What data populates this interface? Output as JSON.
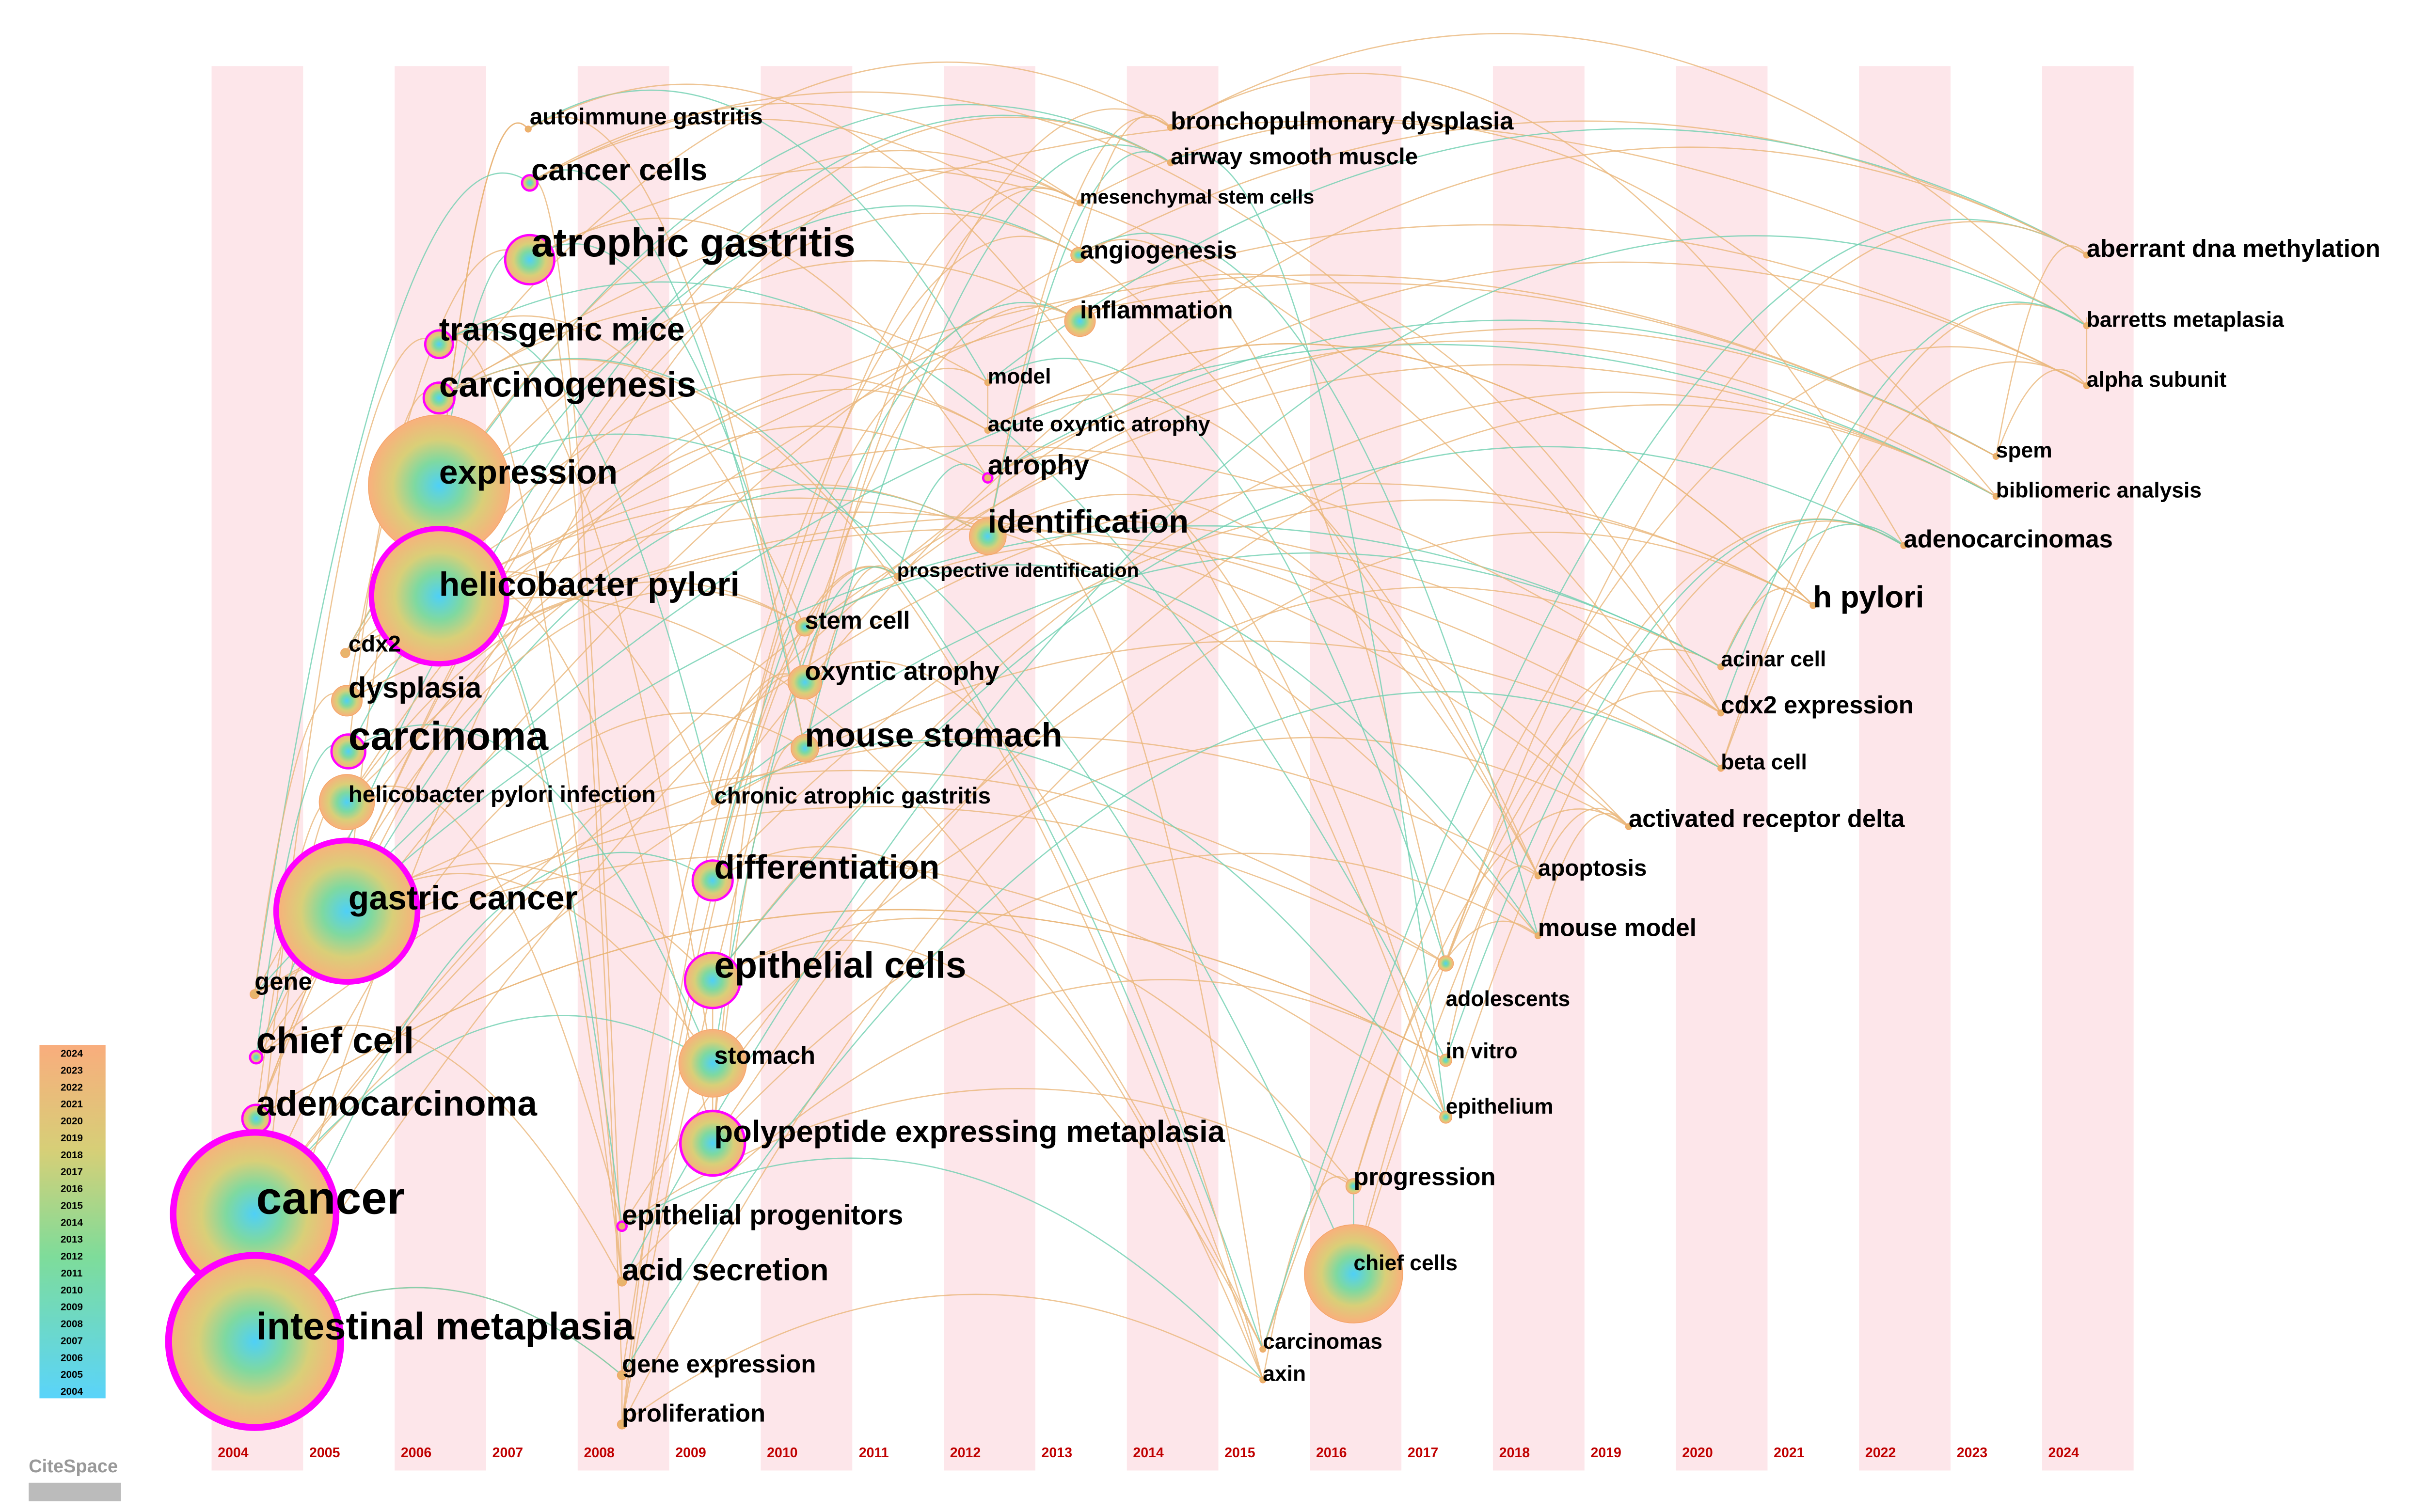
{
  "timeline": {
    "years": [
      2004,
      2005,
      2006,
      2007,
      2008,
      2009,
      2010,
      2011,
      2012,
      2013,
      2014,
      2015,
      2016,
      2017,
      2018,
      2019,
      2020,
      2021,
      2022,
      2023,
      2024
    ]
  },
  "legend": {
    "years": [
      2024,
      2023,
      2022,
      2021,
      2020,
      2019,
      2018,
      2017,
      2016,
      2015,
      2014,
      2013,
      2012,
      2011,
      2010,
      2009,
      2008,
      2007,
      2006,
      2005,
      2004
    ]
  },
  "logo": "CiteSpace",
  "nodes": [
    {
      "label": "autoimmune gastritis"
    },
    {
      "label": "cancer cells"
    },
    {
      "label": "atrophic gastritis"
    },
    {
      "label": "transgenic mice"
    },
    {
      "label": "carcinogenesis"
    },
    {
      "label": "expression"
    },
    {
      "label": "helicobacter pylori"
    },
    {
      "label": "cdx2"
    },
    {
      "label": "dysplasia"
    },
    {
      "label": "carcinoma"
    },
    {
      "label": "helicobacter pylori infection"
    },
    {
      "label": "gastric cancer"
    },
    {
      "label": "gene"
    },
    {
      "label": "chief cell"
    },
    {
      "label": "adenocarcinoma"
    },
    {
      "label": "cancer"
    },
    {
      "label": "intestinal metaplasia"
    },
    {
      "label": "epithelial progenitors"
    },
    {
      "label": "acid secretion"
    },
    {
      "label": "gene expression"
    },
    {
      "label": "proliferation"
    },
    {
      "label": "differentiation"
    },
    {
      "label": "epithelial cells"
    },
    {
      "label": "stomach"
    },
    {
      "label": "polypeptide expressing metaplasia"
    },
    {
      "label": "chronic atrophic gastritis"
    },
    {
      "label": "stem cell"
    },
    {
      "label": "oxyntic atrophy"
    },
    {
      "label": "mouse stomach"
    },
    {
      "label": "prospective identification"
    },
    {
      "label": "identification"
    },
    {
      "label": "atrophy"
    },
    {
      "label": "acute oxyntic atrophy"
    },
    {
      "label": "model"
    },
    {
      "label": "inflammation"
    },
    {
      "label": "angiogenesis"
    },
    {
      "label": "mesenchymal stem cells"
    },
    {
      "label": "airway smooth muscle"
    },
    {
      "label": "bronchopulmonary dysplasia"
    },
    {
      "label": "progression"
    },
    {
      "label": "chief cells"
    },
    {
      "label": "carcinomas"
    },
    {
      "label": "axin"
    },
    {
      "label": "adolescents"
    },
    {
      "label": "in vitro"
    },
    {
      "label": "epithelium"
    },
    {
      "label": "apoptosis"
    },
    {
      "label": "mouse model"
    },
    {
      "label": "activated receptor delta"
    },
    {
      "label": "acinar cell"
    },
    {
      "label": "cdx2 expression"
    },
    {
      "label": "beta cell"
    },
    {
      "label": "h pylori"
    },
    {
      "label": "adenocarcinomas"
    },
    {
      "label": "spem"
    },
    {
      "label": "bibliomeric analysis"
    },
    {
      "label": "aberrant dna methylation"
    },
    {
      "label": "barretts metaplasia"
    },
    {
      "label": "alpha subunit"
    }
  ]
}
